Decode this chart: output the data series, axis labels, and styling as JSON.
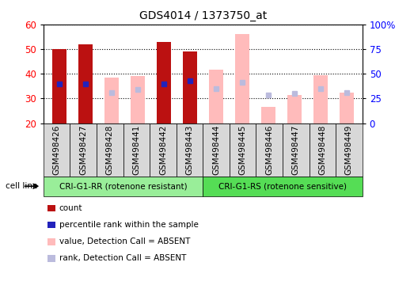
{
  "title": "GDS4014 / 1373750_at",
  "samples": [
    "GSM498426",
    "GSM498427",
    "GSM498428",
    "GSM498441",
    "GSM498442",
    "GSM498443",
    "GSM498444",
    "GSM498445",
    "GSM498446",
    "GSM498447",
    "GSM498448",
    "GSM498449"
  ],
  "group1_count": 6,
  "group2_count": 6,
  "group1_label": "CRI-G1-RR (rotenone resistant)",
  "group2_label": "CRI-G1-RS (rotenone sensitive)",
  "cell_line_label": "cell line",
  "ylim": [
    20,
    60
  ],
  "y2lim": [
    0,
    100
  ],
  "yticks": [
    20,
    30,
    40,
    50,
    60
  ],
  "y2ticks": [
    0,
    25,
    50,
    75,
    100
  ],
  "count_values": [
    50,
    52,
    null,
    null,
    53,
    49,
    null,
    null,
    null,
    null,
    null,
    null
  ],
  "rank_values": [
    36,
    36,
    null,
    null,
    36,
    37,
    null,
    null,
    null,
    null,
    null,
    null
  ],
  "absent_value": [
    null,
    null,
    38.5,
    39,
    null,
    null,
    41.5,
    56,
    26.5,
    31.5,
    39.5,
    32.5
  ],
  "absent_rank": [
    null,
    null,
    32.5,
    33.5,
    null,
    null,
    34,
    36.5,
    31.5,
    32,
    34,
    32.5
  ],
  "count_color": "#bb1111",
  "rank_color": "#2222bb",
  "absent_value_color": "#ffbbbb",
  "absent_rank_color": "#bbbbdd",
  "bar_width": 0.55,
  "legend_items": [
    {
      "label": "count",
      "color": "#bb1111"
    },
    {
      "label": "percentile rank within the sample",
      "color": "#2222bb"
    },
    {
      "label": "value, Detection Call = ABSENT",
      "color": "#ffbbbb"
    },
    {
      "label": "rank, Detection Call = ABSENT",
      "color": "#bbbbdd"
    }
  ],
  "background_color": "#ffffff",
  "plot_bg_color": "#ffffff",
  "tick_label_fontsize": 7.5,
  "title_fontsize": 10,
  "group1_color": "#99ee99",
  "group2_color": "#55dd55",
  "tick_bg_color": "#d8d8d8"
}
